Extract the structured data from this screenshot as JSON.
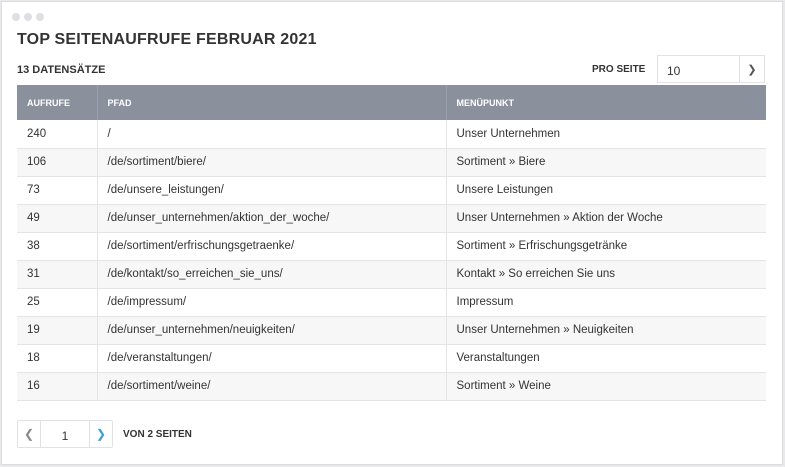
{
  "title": "TOP SEITENAUFRUFE FEBRUAR 2021",
  "record_count": "13 DATENSÄTZE",
  "per_page": {
    "label": "PRO SEITE",
    "value": "10"
  },
  "table": {
    "headers": [
      "AUFRUFE",
      "PFAD",
      "MENÜPUNKT"
    ],
    "rows": [
      [
        "240",
        "/",
        "Unser Unternehmen"
      ],
      [
        "106",
        "/de/sortiment/biere/",
        "Sortiment » Biere"
      ],
      [
        "73",
        "/de/unsere_leistungen/",
        "Unsere Leistungen"
      ],
      [
        "49",
        "/de/unser_unternehmen/aktion_der_woche/",
        "Unser Unternehmen » Aktion der Woche"
      ],
      [
        "38",
        "/de/sortiment/erfrischungsgetraenke/",
        "Sortiment » Erfrischungsgetränke"
      ],
      [
        "31",
        "/de/kontakt/so_erreichen_sie_uns/",
        "Kontakt » So erreichen Sie uns"
      ],
      [
        "25",
        "/de/impressum/",
        "Impressum"
      ],
      [
        "19",
        "/de/unser_unternehmen/neuigkeiten/",
        "Unser Unternehmen » Neuigkeiten"
      ],
      [
        "18",
        "/de/veranstaltungen/",
        "Veranstaltungen"
      ],
      [
        "16",
        "/de/sortiment/weine/",
        "Sortiment » Weine"
      ]
    ]
  },
  "pagination": {
    "current_page": "1",
    "total_text": "VON 2 SEITEN",
    "prev_icon": "chevron-left",
    "next_icon": "chevron-right"
  },
  "colors": {
    "header_bg": "#8a909c",
    "accent": "#3a9fd6"
  }
}
